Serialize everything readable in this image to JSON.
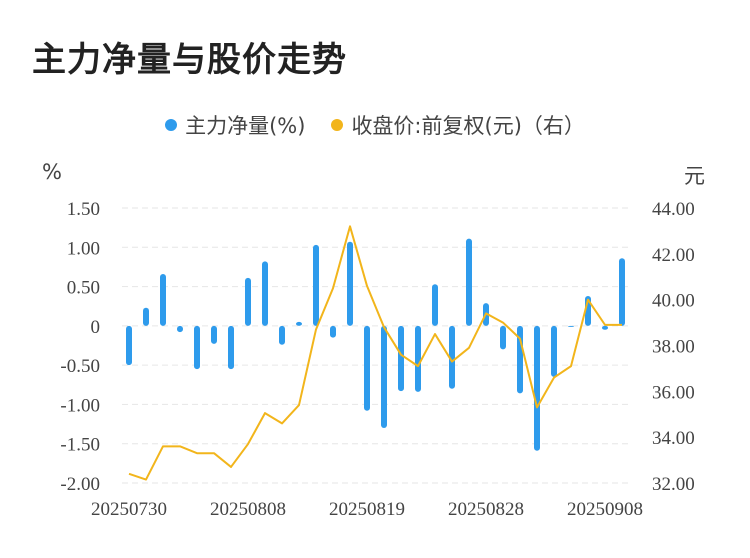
{
  "title": "主力净量与股价走势",
  "legend": {
    "bar_label": "主力净量(%)",
    "line_label": "收盘价:前复权(元)（右）"
  },
  "units": {
    "left": "%",
    "right": "元"
  },
  "colors": {
    "bar": "#2e9bec",
    "line": "#f2b51b",
    "grid": "#e6e6e6"
  },
  "chart_data": {
    "type": "bar+line",
    "title": "主力净量与股价走势",
    "x_tick_labels": [
      "20250730",
      "20250808",
      "20250819",
      "20250828",
      "20250908"
    ],
    "x_tick_indices": [
      0,
      7,
      14,
      21,
      28
    ],
    "y_left": {
      "ylim": [
        -2.0,
        1.5
      ],
      "ticks": [
        "1.50",
        "1.00",
        "0.50",
        "0",
        "-0.50",
        "-1.00",
        "-1.50",
        "-2.00"
      ],
      "tick_values": [
        1.5,
        1.0,
        0.5,
        0,
        -0.5,
        -1.0,
        -1.5,
        -2.0
      ]
    },
    "y_right": {
      "ylim": [
        32.0,
        44.0
      ],
      "ticks": [
        "44.00",
        "42.00",
        "40.00",
        "38.00",
        "36.00",
        "34.00",
        "32.00"
      ],
      "tick_values": [
        44,
        42,
        40,
        38,
        36,
        34,
        32
      ]
    },
    "series": [
      {
        "name": "主力净量(%)",
        "type": "bar",
        "values": [
          -0.5,
          0.23,
          0.66,
          -0.08,
          -0.55,
          -0.23,
          -0.55,
          0.61,
          0.82,
          -0.24,
          0.05,
          1.03,
          -0.15,
          1.07,
          -1.08,
          -1.3,
          -0.83,
          -0.84,
          0.53,
          -0.8,
          1.11,
          0.29,
          -0.3,
          -0.86,
          -1.59,
          -0.65,
          -0.01,
          0.38,
          -0.05,
          0.86
        ]
      },
      {
        "name": "收盘价:前复权(元)（右）",
        "type": "line",
        "values": [
          32.4,
          32.15,
          33.6,
          33.6,
          33.3,
          33.3,
          32.7,
          33.7,
          35.05,
          34.6,
          35.4,
          38.7,
          40.5,
          43.2,
          40.6,
          38.8,
          37.6,
          37.1,
          38.5,
          37.3,
          37.9,
          39.4,
          39.0,
          38.3,
          35.3,
          36.6,
          37.1,
          40.0,
          38.9,
          38.9
        ]
      }
    ]
  }
}
